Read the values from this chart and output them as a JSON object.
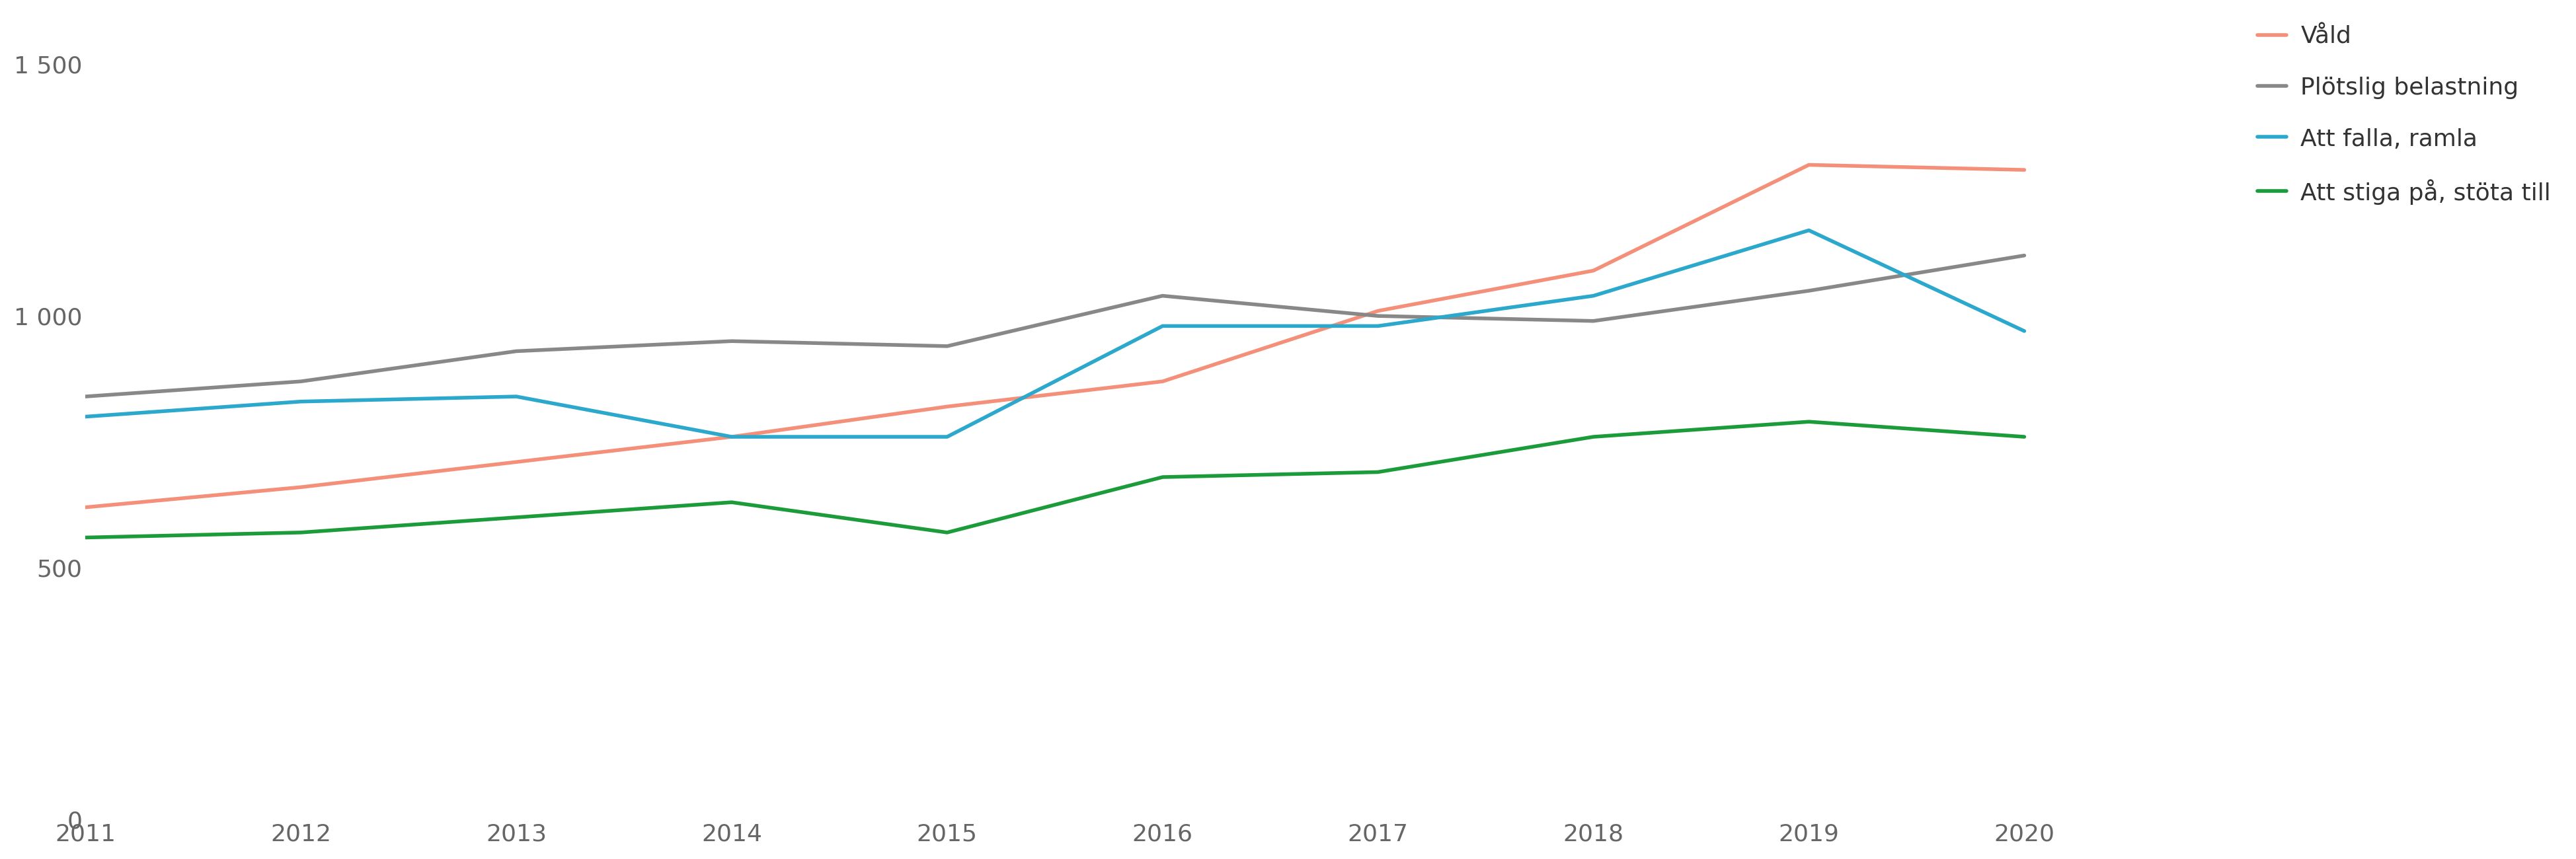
{
  "years": [
    2011,
    2012,
    2013,
    2014,
    2015,
    2016,
    2017,
    2018,
    2019,
    2020
  ],
  "series": {
    "Våld": [
      620,
      660,
      710,
      760,
      820,
      870,
      1010,
      1090,
      1300,
      1290
    ],
    "Plötslig belastning": [
      840,
      870,
      930,
      950,
      940,
      1040,
      1000,
      990,
      1050,
      1120
    ],
    "Att falla, ramla": [
      800,
      830,
      840,
      760,
      760,
      980,
      980,
      1040,
      1170,
      970
    ],
    "Att stiga på, stöta till": [
      560,
      570,
      600,
      630,
      570,
      680,
      690,
      760,
      790,
      760
    ]
  },
  "colors": {
    "Våld": "#F4907A",
    "Plötslig belastning": "#888888",
    "Att falla, ramla": "#2BA8CC",
    "Att stiga på, stöta till": "#1B9B3A"
  },
  "line_width": 4.0,
  "ylim": [
    0,
    1600
  ],
  "yticks": [
    0,
    500,
    1000,
    1500
  ],
  "ytick_labels": [
    "0",
    "500",
    "1 000",
    "1 500"
  ],
  "xlim": [
    2011,
    2022.5
  ],
  "background_color": "#ffffff",
  "legend_fontsize": 26,
  "tick_fontsize": 26,
  "tick_color": "#666666",
  "legend_order": [
    "Våld",
    "Plötslig belastning",
    "Att falla, ramla",
    "Att stiga på, stöta till"
  ]
}
